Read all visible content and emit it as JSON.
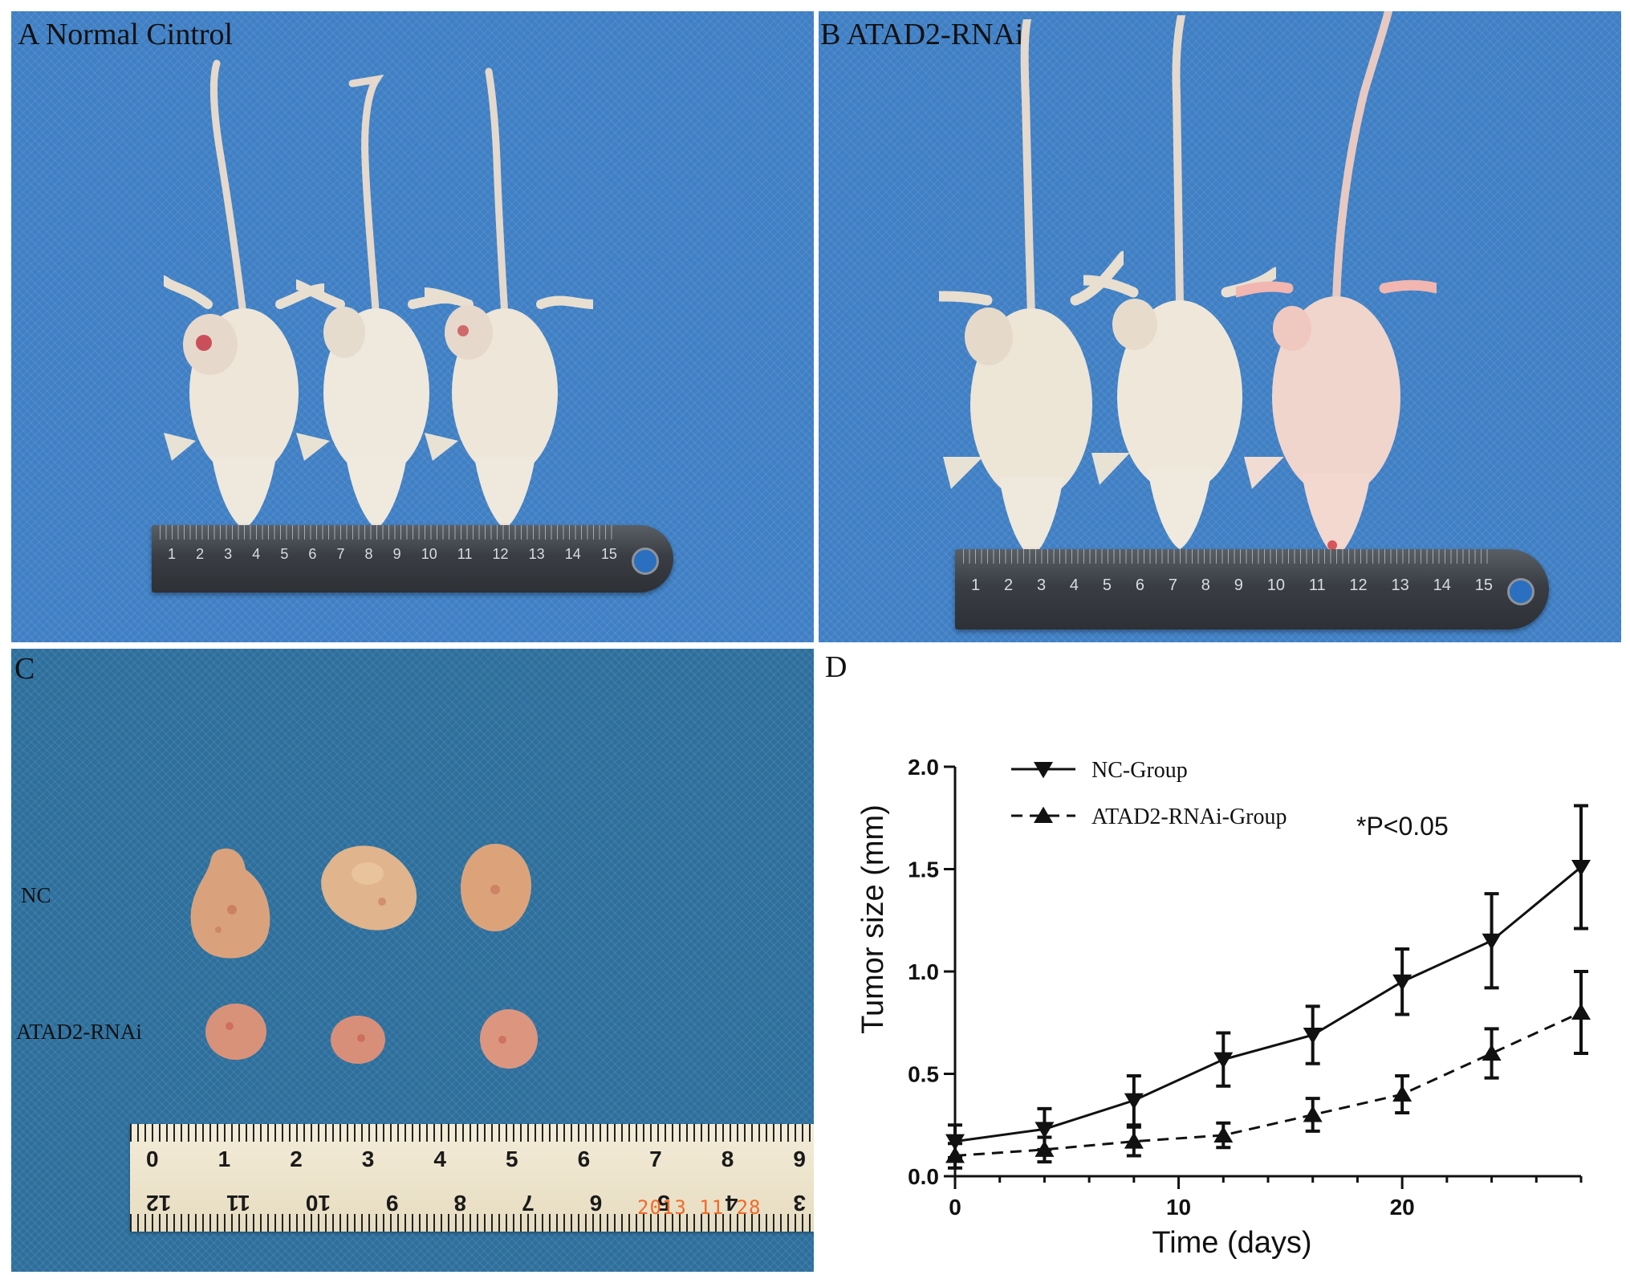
{
  "panels": {
    "a": {
      "label": "A Normal Cintrol"
    },
    "b": {
      "label": "B ATAD2-RNAi"
    },
    "c": {
      "label": "C",
      "row_labels": [
        "NC",
        "ATAD2-RNAi"
      ],
      "ruler_top_numbers": [
        "0",
        "1",
        "2",
        "3",
        "4",
        "5",
        "6",
        "7",
        "8",
        "9"
      ],
      "ruler_bottom_numbers": [
        "12",
        "11",
        "10",
        "9",
        "8",
        "7",
        "6",
        "5",
        "4",
        "3"
      ],
      "date_stamp": "2013 11 28"
    },
    "d": {
      "label": "D"
    }
  },
  "steel_ruler_numbers": [
    "1",
    "2",
    "3",
    "4",
    "5",
    "6",
    "7",
    "8",
    "9",
    "10",
    "11",
    "12",
    "13",
    "14",
    "15"
  ],
  "colors": {
    "drape_blue": "#3f7fc4",
    "tabletop_blue": "#2d6f9c",
    "mouse_skin": "#eee6d8",
    "tumor_flesh": "#d9a27c"
  },
  "chart_data": {
    "type": "line",
    "title": "",
    "xlabel": "Time (days)",
    "ylabel": "Tumor  size (mm)",
    "xlim": [
      0,
      28
    ],
    "ylim": [
      0.0,
      2.0
    ],
    "xticks": [
      0,
      10,
      20
    ],
    "yticks": [
      0.0,
      0.5,
      1.0,
      1.5,
      2.0
    ],
    "xtick_labels": [
      "0",
      "10",
      "20"
    ],
    "ytick_labels": [
      "0.0",
      "0.5",
      "1.0",
      "1.5",
      "2.0"
    ],
    "annotation": "*P<0.05",
    "legend_position": "top-left",
    "series": [
      {
        "name": "NC-Group",
        "style": "solid",
        "marker": "triangle-down",
        "x": [
          0,
          4,
          8,
          12,
          16,
          20,
          24,
          28
        ],
        "y": [
          0.17,
          0.23,
          0.37,
          0.57,
          0.69,
          0.95,
          1.15,
          1.51
        ],
        "err": [
          0.08,
          0.1,
          0.12,
          0.13,
          0.14,
          0.16,
          0.23,
          0.3
        ]
      },
      {
        "name": "ATAD2-RNAi-Group",
        "style": "dashed",
        "marker": "triangle-up",
        "x": [
          0,
          4,
          8,
          12,
          16,
          20,
          24,
          28
        ],
        "y": [
          0.1,
          0.13,
          0.17,
          0.2,
          0.3,
          0.4,
          0.6,
          0.8
        ],
        "err": [
          0.06,
          0.06,
          0.07,
          0.06,
          0.08,
          0.09,
          0.12,
          0.2
        ]
      }
    ]
  }
}
